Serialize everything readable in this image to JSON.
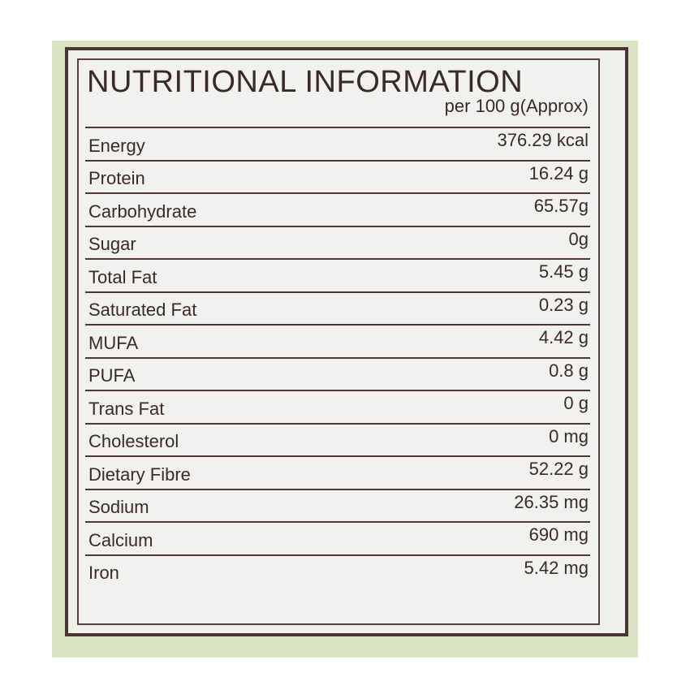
{
  "label": {
    "title": "NUTRITIONAL INFORMATION",
    "subtitle": "per 100 g(Approx)",
    "rows": [
      {
        "name": "Energy",
        "value": "376.29 kcal"
      },
      {
        "name": "Protein",
        "value": "16.24 g"
      },
      {
        "name": "Carbohydrate",
        "value": "65.57g"
      },
      {
        "name": "Sugar",
        "value": "0g"
      },
      {
        "name": "Total Fat",
        "value": "5.45 g"
      },
      {
        "name": "Saturated Fat",
        "value": "0.23 g"
      },
      {
        "name": "MUFA",
        "value": "4.42 g"
      },
      {
        "name": "PUFA",
        "value": "0.8 g"
      },
      {
        "name": "Trans Fat",
        "value": "0 g"
      },
      {
        "name": "Cholesterol",
        "value": "0 mg"
      },
      {
        "name": "Dietary Fibre",
        "value": "52.22 g"
      },
      {
        "name": "Sodium",
        "value": "26.35 mg"
      },
      {
        "name": "Calcium",
        "value": "690 mg"
      },
      {
        "name": "Iron",
        "value": "5.42 mg"
      }
    ]
  },
  "colors": {
    "background": "#d9e3c4",
    "ink": "#3a2a26",
    "label": "#f1f2ef"
  }
}
